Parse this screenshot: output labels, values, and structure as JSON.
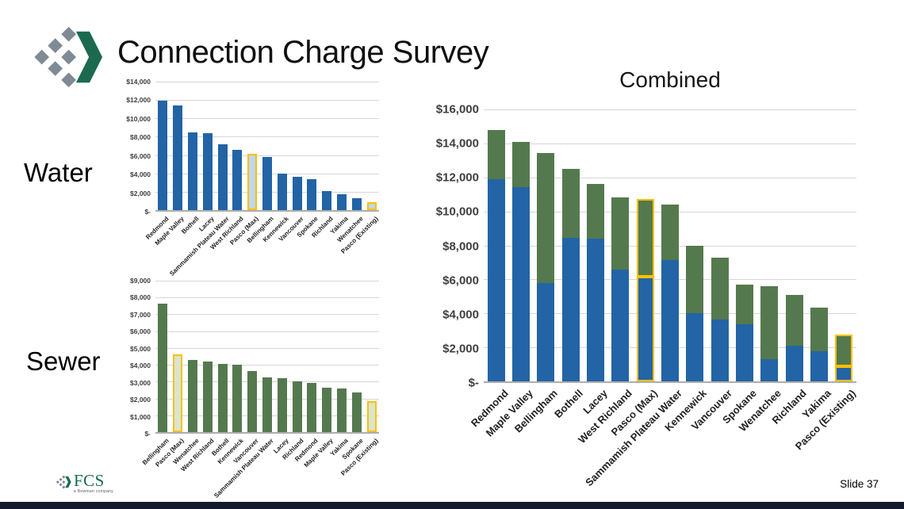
{
  "slide": {
    "title": "Connection Charge Survey",
    "section_labels": {
      "water": "Water",
      "sewer": "Sewer"
    },
    "footer": {
      "logo_text": "FCS",
      "logo_tagline": "a Bowman company",
      "slide_number": "Slide 37"
    }
  },
  "colors": {
    "water_bar": "#2264A5",
    "sewer_bar": "#55794E",
    "water_highlight_fill": "#BDD7EE",
    "sewer_highlight_fill": "#D9E5CF",
    "highlight_outline": "#FFC000",
    "gridline": "#D6D6D6",
    "axis_line": "#ADADAD",
    "footer_strip": "#141A2D",
    "logo_gray": "#7E8A94",
    "logo_green": "#1B6A50",
    "fcs_text_green": "#166A52"
  },
  "chart_data": [
    {
      "id": "water",
      "type": "bar",
      "title": "",
      "xlabel": "",
      "ylabel": "",
      "ylim": [
        0,
        14000
      ],
      "ytick_step": 2000,
      "ytick_labels": [
        "$-",
        "$2,000",
        "$4,000",
        "$6,000",
        "$8,000",
        "$10,000",
        "$12,000",
        "$14,000"
      ],
      "grid": true,
      "legend": "none",
      "categories": [
        "Redmond",
        "Maple Valley",
        "Bothell",
        "Lacey",
        "Sammamish Plateau Water",
        "West Richland",
        "Pasco (Max)",
        "Bellingham",
        "Kennewick",
        "Vancouver",
        "Spokane",
        "Richland",
        "Yakima",
        "Wenatchee",
        "Pasco (Existing)"
      ],
      "values": [
        11900,
        11450,
        8450,
        8400,
        7150,
        6600,
        6150,
        5800,
        4000,
        3650,
        3350,
        2100,
        1750,
        1300,
        900
      ],
      "highlighted": [
        "Pasco (Max)",
        "Pasco (Existing)"
      ],
      "bar_color_key": "water_bar",
      "highlight_fill_key": "water_highlight_fill"
    },
    {
      "id": "sewer",
      "type": "bar",
      "title": "",
      "xlabel": "",
      "ylabel": "",
      "ylim": [
        0,
        9000
      ],
      "ytick_step": 1000,
      "ytick_labels": [
        "$-",
        "$1,000",
        "$2,000",
        "$3,000",
        "$4,000",
        "$5,000",
        "$6,000",
        "$7,000",
        "$8,000",
        "$9,000"
      ],
      "grid": true,
      "legend": "none",
      "categories": [
        "Bellingham",
        "Pasco (Max)",
        "Wenatchee",
        "West Richland",
        "Bothell",
        "Kennewick",
        "Vancouver",
        "Sammamish Plateau Water",
        "Lacey",
        "Richland",
        "Redmond",
        "Maple Valley",
        "Yakima",
        "Spokane",
        "Pasco (Existing)"
      ],
      "values": [
        7650,
        4600,
        4300,
        4200,
        4050,
        4000,
        3650,
        3250,
        3200,
        3000,
        2900,
        2650,
        2600,
        2350,
        1850
      ],
      "highlighted": [
        "Pasco (Max)",
        "Pasco (Existing)"
      ],
      "bar_color_key": "sewer_bar",
      "highlight_fill_key": "sewer_highlight_fill"
    },
    {
      "id": "combined",
      "type": "stacked-bar",
      "title": "Combined",
      "xlabel": "",
      "ylabel": "",
      "ylim": [
        0,
        16000
      ],
      "ytick_step": 2000,
      "ytick_labels": [
        "$-",
        "$2,000",
        "$4,000",
        "$6,000",
        "$8,000",
        "$10,000",
        "$12,000",
        "$14,000",
        "$16,000"
      ],
      "grid": true,
      "legend": "none",
      "categories": [
        "Redmond",
        "Maple Valley",
        "Bellingham",
        "Bothell",
        "Lacey",
        "West Richland",
        "Pasco (Max)",
        "Sammamish Plateau Water",
        "Kennewick",
        "Vancouver",
        "Spokane",
        "Wenatchee",
        "Richland",
        "Yakima",
        "Pasco (Existing)"
      ],
      "series": [
        {
          "name": "Water",
          "color_key": "water_bar",
          "values": [
            11900,
            11450,
            5800,
            8450,
            8400,
            6600,
            6150,
            7150,
            4000,
            3650,
            3350,
            1300,
            2100,
            1750,
            900
          ]
        },
        {
          "name": "Sewer",
          "color_key": "sewer_bar",
          "values": [
            2900,
            2650,
            7650,
            4050,
            3200,
            4200,
            4600,
            3250,
            4000,
            3650,
            2350,
            4300,
            3000,
            2600,
            1850
          ]
        }
      ],
      "highlighted": [
        "Pasco (Max)",
        "Pasco (Existing)"
      ]
    }
  ]
}
